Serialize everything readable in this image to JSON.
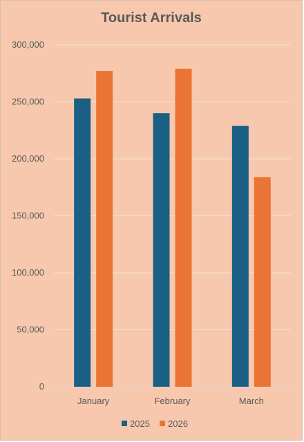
{
  "chart_data": {
    "type": "bar",
    "title": "Tourist Arrivals",
    "categories": [
      "January",
      "February",
      "March"
    ],
    "series": [
      {
        "name": "2025",
        "color": "#1a5f84",
        "values": [
          253000,
          240000,
          229000
        ]
      },
      {
        "name": "2026",
        "color": "#e97433",
        "values": [
          277000,
          279000,
          184000
        ]
      }
    ],
    "ylim": [
      0,
      300000
    ],
    "yticks": [
      0,
      50000,
      100000,
      150000,
      200000,
      250000,
      300000
    ],
    "ytick_labels": [
      "0",
      "50,000",
      "100,000",
      "150,000",
      "200,000",
      "250,000",
      "300,000"
    ],
    "grid": true,
    "legend_position": "bottom",
    "background_color": "#f7c8ad",
    "gridline_color": "#f2e3d8"
  }
}
